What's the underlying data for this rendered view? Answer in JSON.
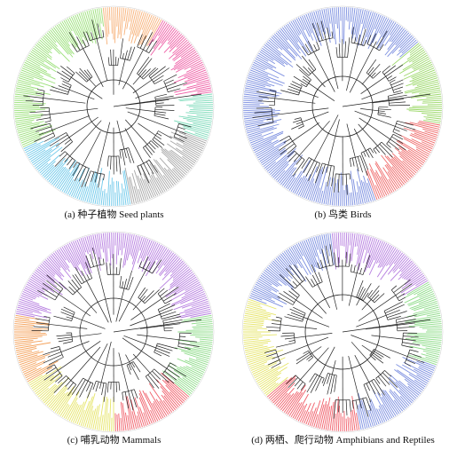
{
  "panels": [
    {
      "id": "a",
      "caption": "(a) 种子植物 Seed plants",
      "outer_palette": [
        "#f4a15a",
        "#ef5fa0",
        "#b6e06a",
        "#8fdc8a",
        "#67c8e8",
        "#7c8fe0",
        "#b0b0b0"
      ],
      "dominant_color": "#9be07a",
      "sectors": [
        {
          "from": -96,
          "to": -60,
          "color": "#f7b27a"
        },
        {
          "from": -60,
          "to": -8,
          "color": "#ee5fa6"
        },
        {
          "from": -8,
          "to": 20,
          "color": "#7fdbbb"
        },
        {
          "from": 20,
          "to": 80,
          "color": "#a7a7a7"
        },
        {
          "from": 80,
          "to": 155,
          "color": "#6fc9ea"
        },
        {
          "from": 155,
          "to": 264,
          "color": "#9be07a"
        }
      ]
    },
    {
      "id": "b",
      "caption": "(b) 鸟类 Birds",
      "outer_palette": [
        "#7c8fe0",
        "#ef5f6a",
        "#b6e06a",
        "#67c8e8",
        "#f4a15a"
      ],
      "dominant_color": "#7c8fe0",
      "sectors": [
        {
          "from": -96,
          "to": -40,
          "color": "#7c8fe0"
        },
        {
          "from": -40,
          "to": 10,
          "color": "#9cd86a"
        },
        {
          "from": 10,
          "to": 70,
          "color": "#ef6b6b"
        },
        {
          "from": 70,
          "to": 264,
          "color": "#7c8fe0"
        }
      ]
    },
    {
      "id": "c",
      "caption": "(c) 哺乳动物 Mammals",
      "outer_palette": [
        "#b77fe0",
        "#f05f6a",
        "#e6e56a",
        "#8fdc8a",
        "#f4a15a",
        "#7c8fe0"
      ],
      "dominant_color": "#b77fe0",
      "sectors": [
        {
          "from": -96,
          "to": -10,
          "color": "#b77fe0"
        },
        {
          "from": -10,
          "to": 40,
          "color": "#8fdc8a"
        },
        {
          "from": 40,
          "to": 90,
          "color": "#f05f6a"
        },
        {
          "from": 90,
          "to": 150,
          "color": "#e6e56a"
        },
        {
          "from": 150,
          "to": 190,
          "color": "#f4a15a"
        },
        {
          "from": 190,
          "to": 264,
          "color": "#b77fe0"
        }
      ]
    },
    {
      "id": "d",
      "caption": "(d) 两栖、爬行动物 Amphibians and Reptiles",
      "outer_palette": [
        "#b77fe0",
        "#8fdc8a",
        "#7c8fe0",
        "#f05f6a",
        "#e6e56a",
        "#f4a15a",
        "#67c8e8"
      ],
      "dominant_color": "#b77fe0",
      "sectors": [
        {
          "from": -96,
          "to": -30,
          "color": "#b77fe0"
        },
        {
          "from": -30,
          "to": 20,
          "color": "#8fdc8a"
        },
        {
          "from": 20,
          "to": 80,
          "color": "#7c8fe0"
        },
        {
          "from": 80,
          "to": 140,
          "color": "#f05f6a"
        },
        {
          "from": 140,
          "to": 200,
          "color": "#e6e56a"
        },
        {
          "from": 200,
          "to": 264,
          "color": "#7c8fe0"
        }
      ]
    }
  ]
}
